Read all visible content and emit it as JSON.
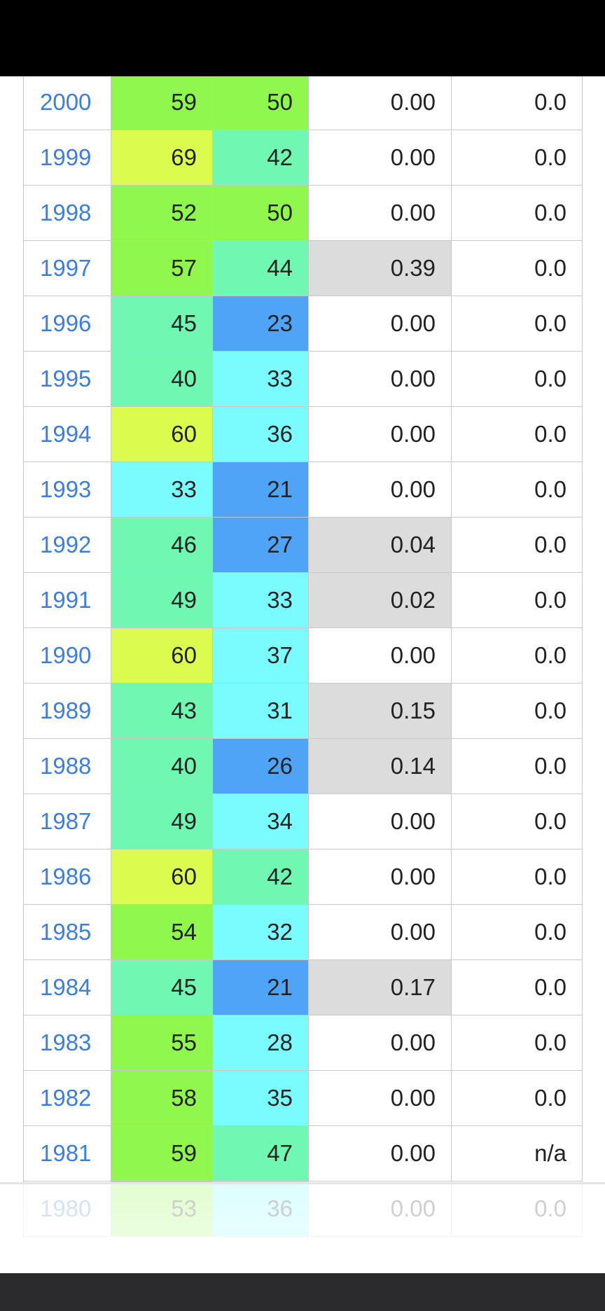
{
  "colors": {
    "status_bar": "#000000",
    "nav_bar": "#2b2b2e",
    "year_link": "#3a7ee0",
    "hot": "#dbfc4e",
    "warm": "#90f84d",
    "mild": "#70f7b1",
    "cool": "#7afcff",
    "cold": "#4fa4f8",
    "precip_nonzero": "#dcdcdc"
  },
  "rows": [
    {
      "year": "2000",
      "high": "59",
      "low": "50",
      "precip": "0.00",
      "snow": "0.0"
    },
    {
      "year": "1999",
      "high": "69",
      "low": "42",
      "precip": "0.00",
      "snow": "0.0"
    },
    {
      "year": "1998",
      "high": "52",
      "low": "50",
      "precip": "0.00",
      "snow": "0.0"
    },
    {
      "year": "1997",
      "high": "57",
      "low": "44",
      "precip": "0.39",
      "snow": "0.0"
    },
    {
      "year": "1996",
      "high": "45",
      "low": "23",
      "precip": "0.00",
      "snow": "0.0"
    },
    {
      "year": "1995",
      "high": "40",
      "low": "33",
      "precip": "0.00",
      "snow": "0.0"
    },
    {
      "year": "1994",
      "high": "60",
      "low": "36",
      "precip": "0.00",
      "snow": "0.0"
    },
    {
      "year": "1993",
      "high": "33",
      "low": "21",
      "precip": "0.00",
      "snow": "0.0"
    },
    {
      "year": "1992",
      "high": "46",
      "low": "27",
      "precip": "0.04",
      "snow": "0.0"
    },
    {
      "year": "1991",
      "high": "49",
      "low": "33",
      "precip": "0.02",
      "snow": "0.0"
    },
    {
      "year": "1990",
      "high": "60",
      "low": "37",
      "precip": "0.00",
      "snow": "0.0"
    },
    {
      "year": "1989",
      "high": "43",
      "low": "31",
      "precip": "0.15",
      "snow": "0.0"
    },
    {
      "year": "1988",
      "high": "40",
      "low": "26",
      "precip": "0.14",
      "snow": "0.0"
    },
    {
      "year": "1987",
      "high": "49",
      "low": "34",
      "precip": "0.00",
      "snow": "0.0"
    },
    {
      "year": "1986",
      "high": "60",
      "low": "42",
      "precip": "0.00",
      "snow": "0.0"
    },
    {
      "year": "1985",
      "high": "54",
      "low": "32",
      "precip": "0.00",
      "snow": "0.0"
    },
    {
      "year": "1984",
      "high": "45",
      "low": "21",
      "precip": "0.17",
      "snow": "0.0"
    },
    {
      "year": "1983",
      "high": "55",
      "low": "28",
      "precip": "0.00",
      "snow": "0.0"
    },
    {
      "year": "1982",
      "high": "58",
      "low": "35",
      "precip": "0.00",
      "snow": "0.0"
    },
    {
      "year": "1981",
      "high": "59",
      "low": "47",
      "precip": "0.00",
      "snow": "n/a"
    },
    {
      "year": "1980",
      "high": "53",
      "low": "36",
      "precip": "0.00",
      "snow": "0.0"
    }
  ]
}
